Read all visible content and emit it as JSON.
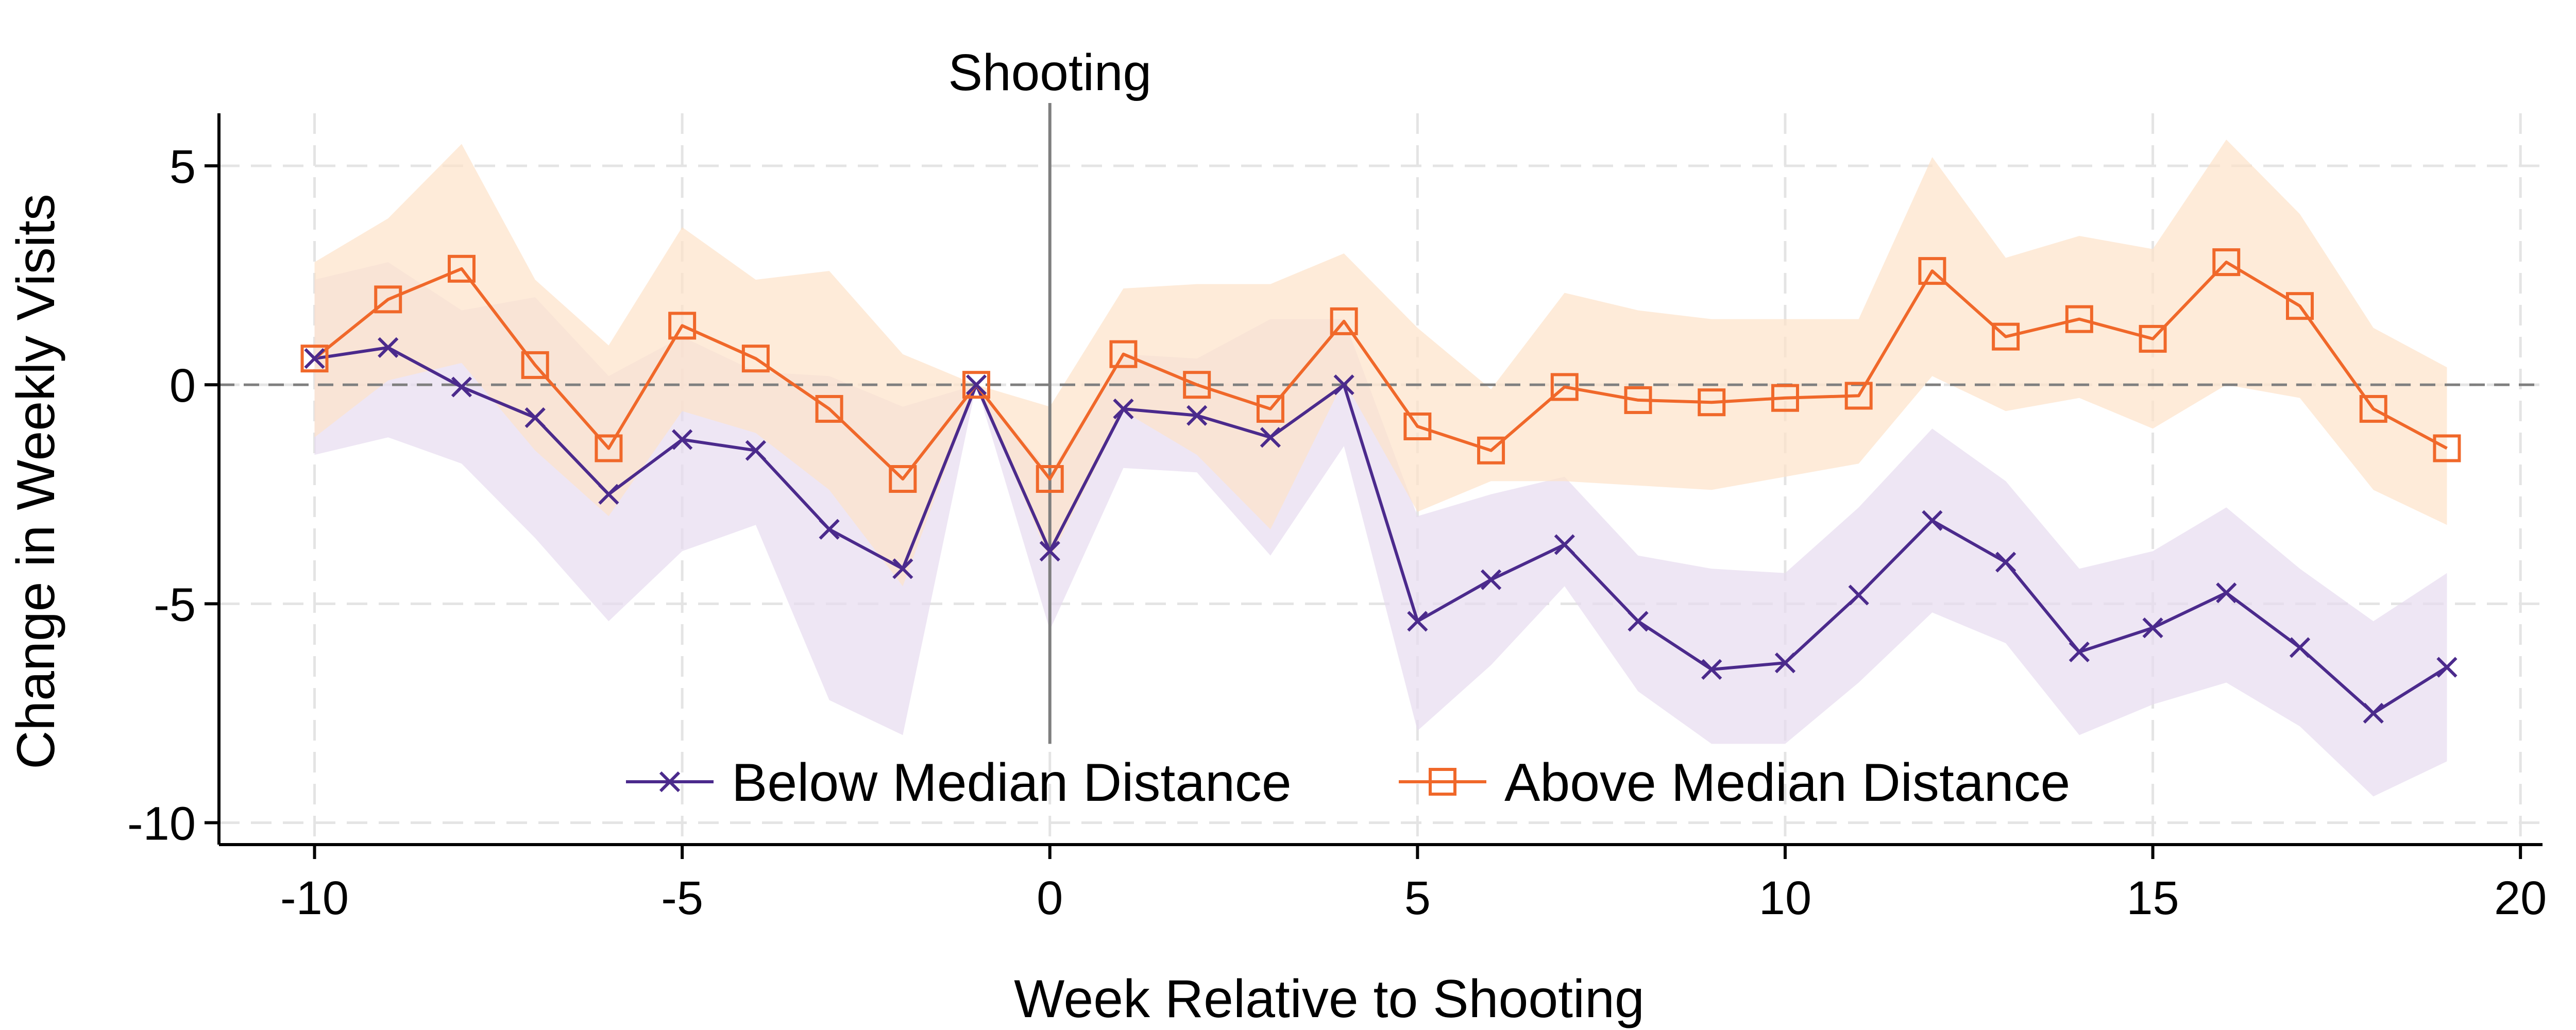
{
  "chart_data": {
    "type": "line",
    "title": "",
    "xlabel": "Week Relative to Shooting",
    "ylabel": "Change in Weekly Visits",
    "xlim": [
      -11.3,
      20.3
    ],
    "ylim": [
      -10.5,
      6.2
    ],
    "xticks": [
      -10,
      -5,
      0,
      5,
      10,
      15,
      20
    ],
    "yticks": [
      5,
      0,
      -5,
      -10
    ],
    "grid": true,
    "legend_position": "bottom-center",
    "annotations": [
      {
        "text": "Shooting",
        "x": 0
      }
    ],
    "reference_lines": [
      {
        "orientation": "vertical",
        "x": 0
      },
      {
        "orientation": "horizontal",
        "y": 0
      }
    ],
    "x": [
      -10,
      -9,
      -8,
      -7,
      -6,
      -5,
      -4,
      -3,
      -2,
      -1,
      0,
      1,
      2,
      3,
      4,
      5,
      6,
      7,
      8,
      9,
      10,
      11,
      12,
      13,
      14,
      15,
      16,
      17,
      18,
      19
    ],
    "series": [
      {
        "name": "Below Median Distance",
        "color": "#4b2a8c",
        "band_color": "#e7dcef",
        "marker": "x",
        "values": [
          0.6,
          0.85,
          -0.05,
          -0.75,
          -2.5,
          -1.25,
          -1.5,
          -3.3,
          -4.2,
          0.0,
          -3.8,
          -0.55,
          -0.7,
          -1.2,
          0.0,
          -5.4,
          -4.45,
          -3.65,
          -5.4,
          -6.5,
          -6.35,
          -4.8,
          -3.1,
          -4.05,
          -6.1,
          -5.55,
          -4.75,
          -6.0,
          -7.5,
          -6.45
        ],
        "lower": [
          -1.6,
          -1.2,
          -1.8,
          -3.5,
          -5.4,
          -3.8,
          -3.2,
          -7.2,
          -8.0,
          0.0,
          -5.6,
          -1.9,
          -2.0,
          -3.9,
          -1.4,
          -7.9,
          -6.4,
          -4.6,
          -7.0,
          -8.2,
          -8.2,
          -6.8,
          -5.2,
          -5.9,
          -8.0,
          -7.3,
          -6.8,
          -7.8,
          -9.4,
          -8.6
        ],
        "upper": [
          2.4,
          2.8,
          1.7,
          2.0,
          0.2,
          1.1,
          0.3,
          0.2,
          -0.5,
          0.0,
          -2.0,
          0.7,
          0.6,
          1.5,
          1.5,
          -3.0,
          -2.5,
          -2.1,
          -3.9,
          -4.2,
          -4.3,
          -2.8,
          -1.0,
          -2.2,
          -4.2,
          -3.8,
          -2.8,
          -4.2,
          -5.4,
          -4.3
        ]
      },
      {
        "name": "Above Median Distance",
        "color": "#f0682a",
        "band_color": "#fde3c9",
        "marker": "square",
        "values": [
          0.6,
          1.95,
          2.65,
          0.45,
          -1.45,
          1.35,
          0.6,
          -0.55,
          -2.15,
          0.0,
          -2.15,
          0.7,
          0.0,
          -0.55,
          1.45,
          -0.95,
          -1.5,
          -0.05,
          -0.35,
          -0.4,
          -0.3,
          -0.25,
          2.6,
          1.1,
          1.5,
          1.05,
          2.8,
          1.8,
          -0.55,
          -1.45
        ],
        "lower": [
          -1.2,
          0.1,
          0.5,
          -1.5,
          -3.0,
          -0.6,
          -1.1,
          -2.4,
          -4.6,
          0.0,
          -4.0,
          -0.6,
          -1.6,
          -3.3,
          0.1,
          -2.9,
          -2.2,
          -2.2,
          -2.3,
          -2.4,
          -2.1,
          -1.8,
          0.2,
          -0.6,
          -0.3,
          -1.0,
          0.0,
          -0.3,
          -2.4,
          -3.2
        ],
        "upper": [
          2.8,
          3.8,
          5.5,
          2.4,
          0.9,
          3.6,
          2.4,
          2.6,
          0.7,
          0.0,
          -0.5,
          2.2,
          2.3,
          2.3,
          3.0,
          1.3,
          -0.1,
          2.1,
          1.7,
          1.5,
          1.5,
          1.5,
          5.2,
          2.9,
          3.4,
          3.1,
          5.6,
          3.9,
          1.3,
          0.4
        ]
      }
    ]
  }
}
